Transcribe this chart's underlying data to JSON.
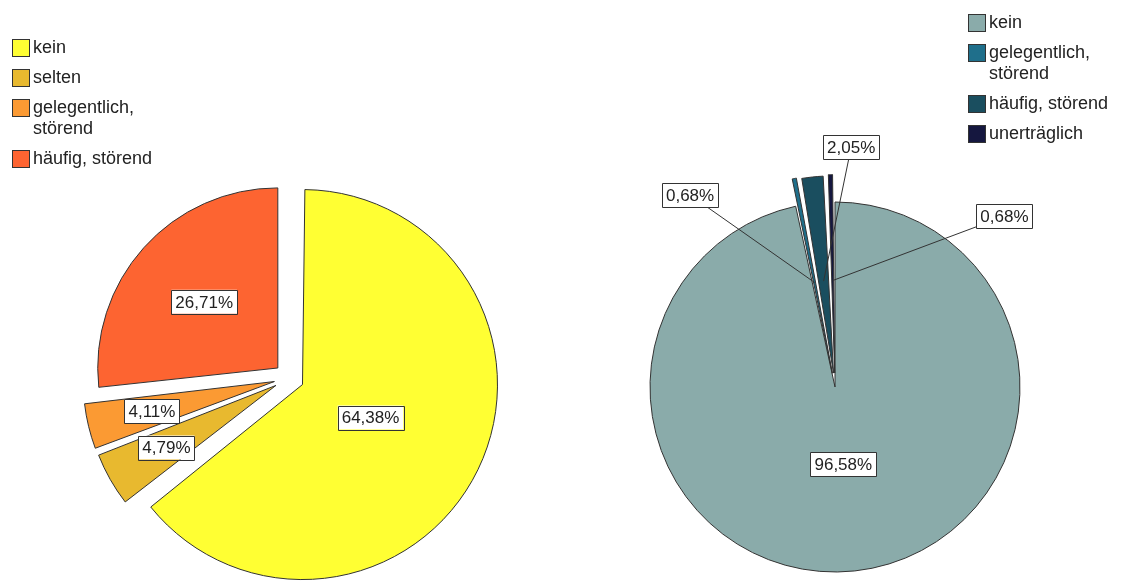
{
  "chart_data": [
    {
      "type": "pie",
      "categories": [
        "kein",
        "selten",
        "gelegentlich, störend",
        "häufig, störend"
      ],
      "values": [
        64.38,
        4.79,
        4.11,
        26.71
      ],
      "colors": [
        "#ffff33",
        "#e8b92f",
        "#fb9a33",
        "#fd6431"
      ],
      "value_labels": [
        "64,38%",
        "4,79%",
        "4,11%",
        "26,71%"
      ],
      "legend": "top left"
    },
    {
      "type": "pie",
      "categories": [
        "kein",
        "gelegentlich, störend",
        "häufig, störend",
        "unerträglich"
      ],
      "values": [
        96.58,
        0.68,
        2.05,
        0.68
      ],
      "colors": [
        "#8aabaa",
        "#1f6f8b",
        "#1a4e5f",
        "#15173f"
      ],
      "value_labels": [
        "96,58%",
        "0,68%",
        "2,05%",
        "0,68%"
      ],
      "legend": "top right"
    }
  ]
}
